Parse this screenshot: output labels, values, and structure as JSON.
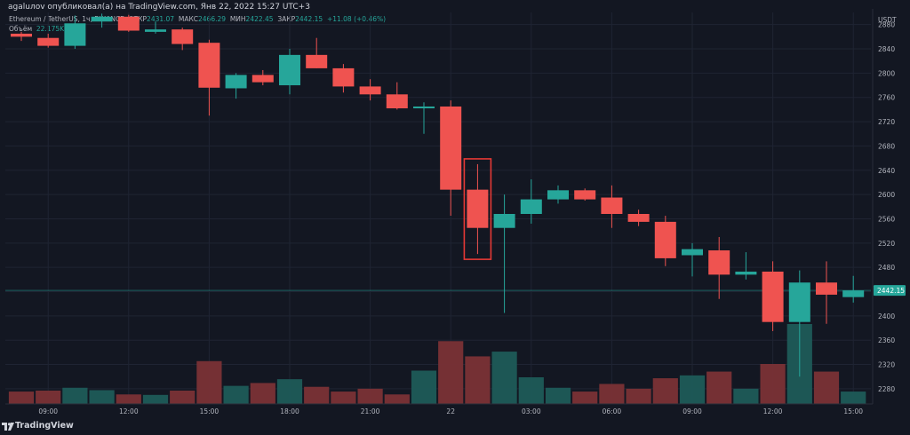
{
  "header": {
    "published": "agaluлоv опубликовал(а) на TradingView.com, Янв 22, 2022 15:27 UTC+3",
    "symbol": "Ethereum / TetherUS, 1ч, BINANCE",
    "open_label": "ОТКР",
    "open_value": "2431.07",
    "high_label": "МАКС",
    "high_value": "2466.29",
    "low_label": "МИН",
    "low_value": "2422.45",
    "close_label": "ЗАКР",
    "close_value": "2442.15",
    "change": "+11.08 (+0.46%)",
    "volume_label": "Объём",
    "volume_value": "22.175K"
  },
  "currency_badge": "USDT",
  "price_badge": "2442.15",
  "footer": {
    "logo": "TradingView"
  },
  "colors": {
    "up": "#26a69a",
    "down": "#ef5350",
    "up_vol": "#1d5b58",
    "down_vol": "#7a3236",
    "grid": "#1f2433",
    "text": "#b2b5be",
    "bg": "#131722"
  },
  "chart_data": {
    "type": "candlestick",
    "title": "",
    "xlabel": "",
    "ylabel": "",
    "ylim": [
      2255,
      2900
    ],
    "y_ticks": [
      2880,
      2840,
      2800,
      2760,
      2720,
      2680,
      2640,
      2600,
      2560,
      2520,
      2480,
      2440,
      2400,
      2360,
      2320,
      2280
    ],
    "x_ticks": [
      {
        "label": "09:00",
        "index": 1
      },
      {
        "label": "12:00",
        "index": 4
      },
      {
        "label": "15:00",
        "index": 7
      },
      {
        "label": "18:00",
        "index": 10
      },
      {
        "label": "21:00",
        "index": 13
      },
      {
        "label": "22",
        "index": 16
      },
      {
        "label": "03:00",
        "index": 19
      },
      {
        "label": "06:00",
        "index": 22
      },
      {
        "label": "09:00",
        "index": 25
      },
      {
        "label": "12:00",
        "index": 28
      },
      {
        "label": "15:00",
        "index": 31
      }
    ],
    "candles": [
      {
        "o": 2865,
        "h": 2868,
        "l": 2853,
        "c": 2860,
        "v": 1.3
      },
      {
        "o": 2858,
        "h": 2865,
        "l": 2842,
        "c": 2845,
        "v": 1.4
      },
      {
        "o": 2845,
        "h": 2895,
        "l": 2840,
        "c": 2882,
        "v": 1.7
      },
      {
        "o": 2885,
        "h": 2898,
        "l": 2875,
        "c": 2893,
        "v": 1.45
      },
      {
        "o": 2893,
        "h": 2896,
        "l": 2868,
        "c": 2870,
        "v": 1.0
      },
      {
        "o": 2868,
        "h": 2885,
        "l": 2865,
        "c": 2872,
        "v": 0.95
      },
      {
        "o": 2872,
        "h": 2875,
        "l": 2838,
        "c": 2848,
        "v": 1.4
      },
      {
        "o": 2850,
        "h": 2855,
        "l": 2730,
        "c": 2776,
        "v": 4.5
      },
      {
        "o": 2775,
        "h": 2800,
        "l": 2758,
        "c": 2797,
        "v": 1.9
      },
      {
        "o": 2797,
        "h": 2805,
        "l": 2780,
        "c": 2785,
        "v": 2.2
      },
      {
        "o": 2780,
        "h": 2840,
        "l": 2765,
        "c": 2830,
        "v": 2.6
      },
      {
        "o": 2830,
        "h": 2858,
        "l": 2808,
        "c": 2808,
        "v": 1.8
      },
      {
        "o": 2808,
        "h": 2815,
        "l": 2768,
        "c": 2778,
        "v": 1.3
      },
      {
        "o": 2778,
        "h": 2790,
        "l": 2755,
        "c": 2765,
        "v": 1.6
      },
      {
        "o": 2765,
        "h": 2785,
        "l": 2740,
        "c": 2742,
        "v": 1.0
      },
      {
        "o": 2742,
        "h": 2752,
        "l": 2700,
        "c": 2745,
        "v": 3.5
      },
      {
        "o": 2745,
        "h": 2755,
        "l": 2565,
        "c": 2608,
        "v": 6.6
      },
      {
        "o": 2608,
        "h": 2650,
        "l": 2502,
        "c": 2545,
        "v": 5.0
      },
      {
        "o": 2545,
        "h": 2600,
        "l": 2405,
        "c": 2568,
        "v": 5.5
      },
      {
        "o": 2568,
        "h": 2625,
        "l": 2552,
        "c": 2592,
        "v": 2.8
      },
      {
        "o": 2592,
        "h": 2615,
        "l": 2585,
        "c": 2607,
        "v": 1.7
      },
      {
        "o": 2607,
        "h": 2610,
        "l": 2590,
        "c": 2592,
        "v": 1.3
      },
      {
        "o": 2595,
        "h": 2615,
        "l": 2545,
        "c": 2568,
        "v": 2.1
      },
      {
        "o": 2568,
        "h": 2575,
        "l": 2548,
        "c": 2555,
        "v": 1.6
      },
      {
        "o": 2555,
        "h": 2565,
        "l": 2482,
        "c": 2495,
        "v": 2.7
      },
      {
        "o": 2500,
        "h": 2520,
        "l": 2465,
        "c": 2510,
        "v": 3.0
      },
      {
        "o": 2508,
        "h": 2530,
        "l": 2428,
        "c": 2468,
        "v": 3.4
      },
      {
        "o": 2468,
        "h": 2505,
        "l": 2460,
        "c": 2473,
        "v": 1.6
      },
      {
        "o": 2473,
        "h": 2490,
        "l": 2375,
        "c": 2390,
        "v": 4.2
      },
      {
        "o": 2390,
        "h": 2475,
        "l": 2300,
        "c": 2455,
        "v": 8.4
      },
      {
        "o": 2455,
        "h": 2490,
        "l": 2387,
        "c": 2435,
        "v": 3.4
      },
      {
        "o": 2431,
        "h": 2466,
        "l": 2422,
        "c": 2442,
        "v": 1.3
      }
    ]
  }
}
